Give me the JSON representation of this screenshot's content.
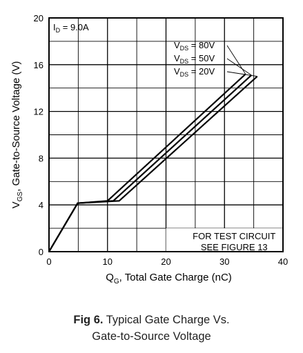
{
  "chart_data": {
    "type": "line",
    "xlabel_main": "Q",
    "xlabel_sub": "G",
    "xlabel_rest": ", Total Gate Charge (nC)",
    "ylabel_main": "V",
    "ylabel_sub": "GS",
    "ylabel_rest": ", Gate-to-Source Voltage (V)",
    "xlim": [
      0,
      40
    ],
    "ylim": [
      0,
      20
    ],
    "x_ticks": [
      "0",
      "10",
      "20",
      "30",
      "40"
    ],
    "y_ticks": [
      "0",
      "4",
      "8",
      "12",
      "16",
      "20"
    ],
    "grid": true,
    "condition_main": "I",
    "condition_sub": "D",
    "condition_rest": " = 9.0A",
    "series": [
      {
        "name": "V_DS = 80V",
        "label_main": "V",
        "label_sub": "DS",
        "label_rest": " = 80V",
        "x": [
          0,
          4.9,
          10.0,
          33.6
        ],
        "y": [
          0,
          4.15,
          4.35,
          15.2
        ]
      },
      {
        "name": "V_DS = 50V",
        "label_main": "V",
        "label_sub": "DS",
        "label_rest": " = 50V",
        "x": [
          0,
          4.9,
          11.0,
          34.6
        ],
        "y": [
          0,
          4.15,
          4.35,
          15.1
        ]
      },
      {
        "name": "V_DS = 20V",
        "label_main": "V",
        "label_sub": "DS",
        "label_rest": " = 20V",
        "x": [
          0,
          4.9,
          12.0,
          35.6
        ],
        "y": [
          0,
          4.15,
          4.35,
          15.0
        ]
      }
    ],
    "note_line1": "FOR TEST CIRCUIT",
    "note_line2": "SEE FIGURE 13"
  },
  "caption": {
    "fig": "Fig 6.",
    "line1": "Typical Gate Charge Vs.",
    "line2": "Gate-to-Source Voltage"
  }
}
